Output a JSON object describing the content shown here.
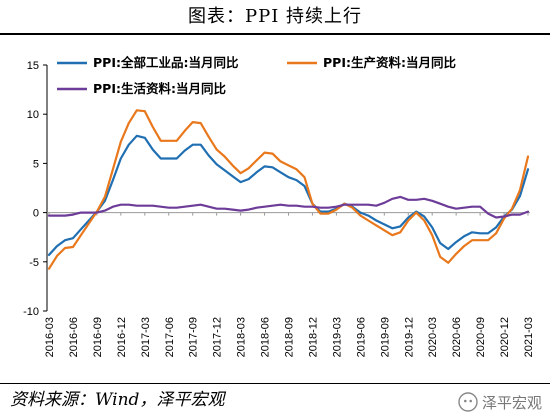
{
  "title": "图表：PPI 持续上行",
  "source": "资料来源：Wind，泽平宏观",
  "watermark": "泽平宏观",
  "chart_data": {
    "type": "line",
    "xlabel": "",
    "ylabel": "",
    "ylim": [
      -10,
      15
    ],
    "yticks": [
      15,
      10,
      5,
      0,
      -5,
      -10
    ],
    "grid": false,
    "legend_position": "top",
    "x": [
      "2016-03",
      "2016-04",
      "2016-05",
      "2016-06",
      "2016-07",
      "2016-08",
      "2016-09",
      "2016-10",
      "2016-11",
      "2016-12",
      "2017-01",
      "2017-02",
      "2017-03",
      "2017-04",
      "2017-05",
      "2017-06",
      "2017-07",
      "2017-08",
      "2017-09",
      "2017-10",
      "2017-11",
      "2017-12",
      "2018-01",
      "2018-02",
      "2018-03",
      "2018-04",
      "2018-05",
      "2018-06",
      "2018-07",
      "2018-08",
      "2018-09",
      "2018-10",
      "2018-11",
      "2018-12",
      "2019-01",
      "2019-02",
      "2019-03",
      "2019-04",
      "2019-05",
      "2019-06",
      "2019-07",
      "2019-08",
      "2019-09",
      "2019-10",
      "2019-11",
      "2019-12",
      "2020-01",
      "2020-02",
      "2020-03",
      "2020-04",
      "2020-05",
      "2020-06",
      "2020-07",
      "2020-08",
      "2020-09",
      "2020-10",
      "2020-11",
      "2020-12",
      "2021-01",
      "2021-02",
      "2021-03"
    ],
    "xticks": [
      "2016-03",
      "2016-06",
      "2016-09",
      "2016-12",
      "2017-03",
      "2017-06",
      "2017-09",
      "2017-12",
      "2018-03",
      "2018-06",
      "2018-09",
      "2018-12",
      "2019-03",
      "2019-06",
      "2019-09",
      "2019-12",
      "2020-03",
      "2020-06",
      "2020-09",
      "2020-12",
      "2021-03"
    ],
    "series": [
      {
        "name": "PPI:全部工业品:当月同比",
        "color": "#1f6fb2",
        "values": [
          -4.3,
          -3.4,
          -2.8,
          -2.6,
          -1.7,
          -0.8,
          0.1,
          1.2,
          3.3,
          5.5,
          6.9,
          7.8,
          7.6,
          6.4,
          5.5,
          5.5,
          5.5,
          6.3,
          6.9,
          6.9,
          5.8,
          4.9,
          4.3,
          3.7,
          3.1,
          3.4,
          4.1,
          4.7,
          4.6,
          4.1,
          3.6,
          3.3,
          2.7,
          0.9,
          0.1,
          0.1,
          0.4,
          0.9,
          0.6,
          0.0,
          -0.3,
          -0.8,
          -1.2,
          -1.6,
          -1.4,
          -0.5,
          0.1,
          -0.4,
          -1.5,
          -3.1,
          -3.7,
          -3.0,
          -2.4,
          -2.0,
          -2.1,
          -2.1,
          -1.5,
          -0.4,
          0.3,
          1.7,
          4.4
        ]
      },
      {
        "name": "PPI:生产资料:当月同比",
        "color": "#e9781c",
        "values": [
          -5.7,
          -4.4,
          -3.6,
          -3.5,
          -2.3,
          -1.1,
          0.1,
          1.6,
          4.4,
          7.2,
          9.1,
          10.4,
          10.3,
          8.7,
          7.3,
          7.3,
          7.3,
          8.3,
          9.2,
          9.1,
          7.7,
          6.4,
          5.7,
          4.8,
          4.0,
          4.5,
          5.3,
          6.1,
          6.0,
          5.2,
          4.8,
          4.4,
          3.6,
          0.9,
          -0.1,
          -0.1,
          0.3,
          0.9,
          0.5,
          -0.3,
          -0.8,
          -1.3,
          -1.8,
          -2.3,
          -2.0,
          -0.8,
          0.0,
          -0.8,
          -2.3,
          -4.5,
          -5.1,
          -4.2,
          -3.4,
          -2.8,
          -2.8,
          -2.8,
          -2.1,
          -0.6,
          0.4,
          2.3,
          5.7
        ]
      },
      {
        "name": "PPI:生活资料:当月同比",
        "color": "#6d3c98",
        "values": [
          -0.3,
          -0.3,
          -0.3,
          -0.2,
          0.0,
          0.0,
          0.0,
          0.2,
          0.6,
          0.8,
          0.8,
          0.7,
          0.7,
          0.7,
          0.6,
          0.5,
          0.5,
          0.6,
          0.7,
          0.8,
          0.6,
          0.4,
          0.4,
          0.3,
          0.2,
          0.3,
          0.5,
          0.6,
          0.7,
          0.8,
          0.7,
          0.7,
          0.6,
          0.6,
          0.5,
          0.5,
          0.6,
          0.8,
          0.8,
          0.8,
          0.8,
          0.7,
          1.0,
          1.4,
          1.6,
          1.3,
          1.3,
          1.4,
          1.2,
          0.9,
          0.6,
          0.4,
          0.5,
          0.6,
          0.6,
          -0.1,
          -0.5,
          -0.4,
          -0.2,
          -0.2,
          0.1
        ]
      }
    ]
  }
}
